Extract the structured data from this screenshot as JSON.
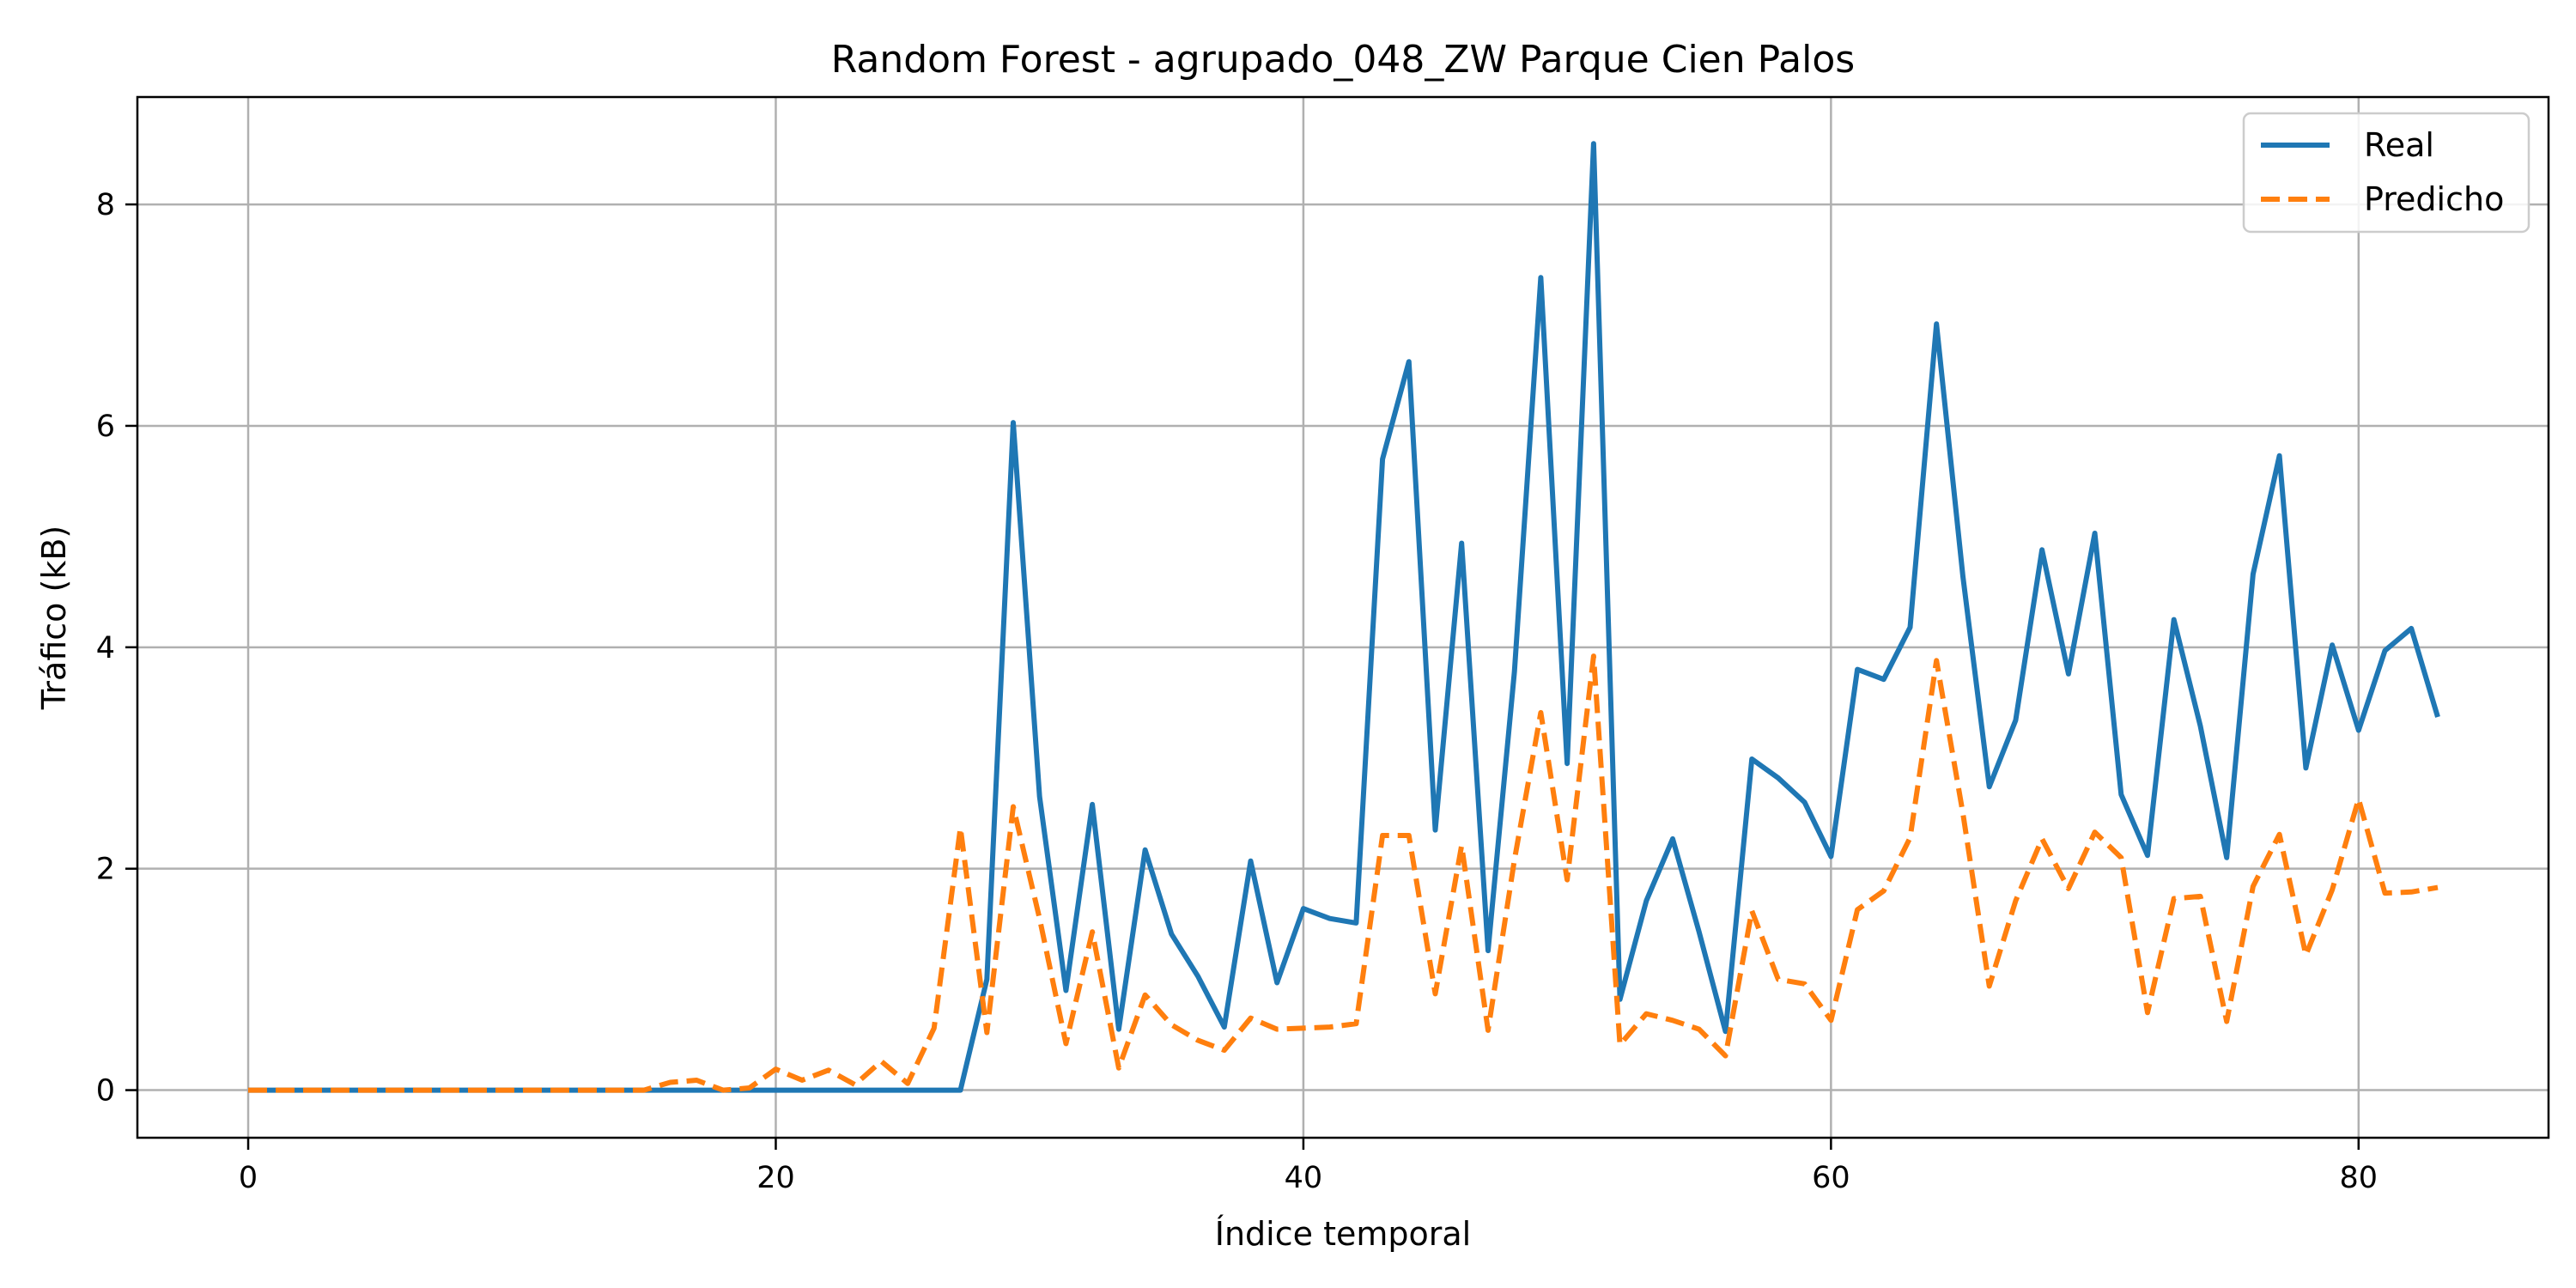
{
  "chart_data": {
    "type": "line",
    "title": "Random Forest - agrupado_048_ZW Parque Cien Palos",
    "xlabel": "Índice temporal",
    "ylabel": "Tráfico (kB)",
    "xlim": [
      -4.2,
      87.2
    ],
    "ylim": [
      -0.43,
      8.97
    ],
    "xticks": [
      0,
      20,
      40,
      60,
      80
    ],
    "yticks": [
      0,
      2,
      4,
      6,
      8
    ],
    "grid": true,
    "legend_position": "top-right",
    "series": [
      {
        "name": "Real",
        "color": "#1f77b4",
        "style": "solid",
        "values": [
          0,
          0,
          0,
          0,
          0,
          0,
          0,
          0,
          0,
          0,
          0,
          0,
          0,
          0,
          0,
          0,
          0,
          0,
          0,
          0,
          0,
          0,
          0,
          0,
          0,
          0,
          0,
          0,
          1.0,
          6.03,
          2.65,
          0.9,
          2.58,
          0.55,
          2.17,
          1.41,
          1.03,
          0.57,
          2.07,
          0.97,
          1.64,
          1.55,
          1.51,
          5.7,
          6.58,
          2.35,
          4.94,
          1.26,
          3.78,
          7.34,
          2.95,
          8.55,
          0.82,
          1.71,
          2.27,
          1.43,
          0.53,
          2.99,
          2.82,
          2.6,
          2.11,
          3.8,
          3.71,
          4.18,
          6.92,
          4.64,
          2.74,
          3.34,
          4.88,
          3.76,
          5.03,
          2.67,
          2.12,
          4.25,
          3.29,
          2.1,
          4.66,
          5.73,
          2.91,
          4.02,
          3.25,
          3.97,
          4.17,
          3.37
        ]
      },
      {
        "name": "Predicho",
        "color": "#ff7f0e",
        "style": "dashed",
        "values": [
          0,
          0,
          0,
          0,
          0,
          0,
          0,
          0,
          0,
          0,
          0,
          0,
          0,
          0,
          0,
          0,
          0.07,
          0.09,
          0,
          0.02,
          0.19,
          0.09,
          0.18,
          0.05,
          0.26,
          0.06,
          0.56,
          2.37,
          0.52,
          2.56,
          1.55,
          0.42,
          1.43,
          0.2,
          0.86,
          0.59,
          0.45,
          0.36,
          0.65,
          0.55,
          0.56,
          0.57,
          0.6,
          2.3,
          2.3,
          0.87,
          2.21,
          0.54,
          2.08,
          3.41,
          1.9,
          3.92,
          0.41,
          0.69,
          0.63,
          0.55,
          0.31,
          1.62,
          1.0,
          0.96,
          0.63,
          1.63,
          1.8,
          2.28,
          3.88,
          2.5,
          0.94,
          1.71,
          2.27,
          1.82,
          2.33,
          2.1,
          0.7,
          1.73,
          1.75,
          0.62,
          1.84,
          2.31,
          1.22,
          1.81,
          2.63,
          1.78,
          1.79,
          1.83
        ]
      }
    ]
  }
}
